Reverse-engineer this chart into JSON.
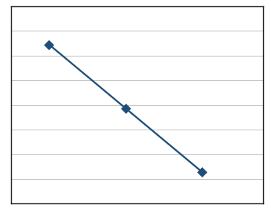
{
  "x": [
    0,
    1,
    2
  ],
  "y": [
    2,
    1,
    0
  ],
  "line_color": "#1f4e79",
  "marker_color": "#1f4e79",
  "marker_style": "D",
  "marker_size": 6,
  "line_width": 1.6,
  "xlim": [
    -0.5,
    2.8
  ],
  "ylim": [
    -0.5,
    2.6
  ],
  "grid_color": "#bbbbbb",
  "grid_linewidth": 0.6,
  "background_color": "#ffffff",
  "figsize": [
    3.45,
    2.7
  ],
  "dpi": 100,
  "spine_color": "#222222",
  "spine_linewidth": 1.0,
  "outer_border_color": "#111111",
  "outer_border_linewidth": 1.5
}
